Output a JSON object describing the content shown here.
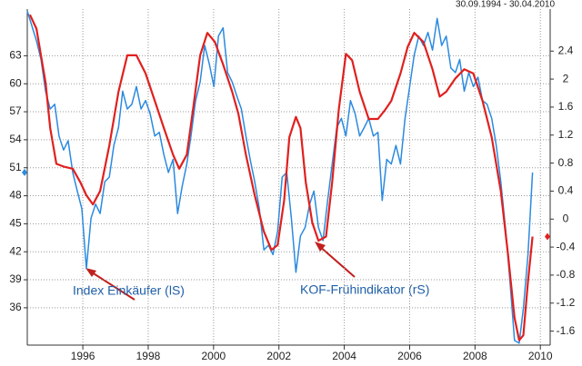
{
  "chart_data": {
    "type": "line",
    "subtitle": "30.09.1994 - 30.04.2010",
    "xlim": [
      1994.3,
      2010.3
    ],
    "xticks": [
      1996,
      1998,
      2000,
      2002,
      2004,
      2006,
      2008,
      2010
    ],
    "ylim": [
      32,
      68
    ],
    "yticks": [
      36,
      39,
      42,
      45,
      48,
      51,
      54,
      57,
      60,
      63
    ],
    "y2lim": [
      -1.8,
      3.0
    ],
    "y2ticks": [
      -1.6,
      -1.2,
      -0.8,
      -0.4,
      0,
      0.4,
      0.8,
      1.2,
      1.6,
      2,
      2.4
    ],
    "grid": true,
    "series": [
      {
        "name": "Index Einkäufer (lS)",
        "color": "#2b8ae0",
        "x": [
          1994.3,
          1994.58,
          1994.72,
          1994.86,
          1995.0,
          1995.14,
          1995.27,
          1995.41,
          1995.55,
          1995.69,
          1995.83,
          1995.97,
          1996.11,
          1996.25,
          1996.39,
          1996.53,
          1996.67,
          1996.81,
          1996.95,
          1997.09,
          1997.22,
          1997.36,
          1997.5,
          1997.64,
          1997.78,
          1997.92,
          1998.06,
          1998.2,
          1998.34,
          1998.48,
          1998.62,
          1998.76,
          1998.9,
          1999.04,
          1999.18,
          1999.31,
          1999.45,
          1999.59,
          1999.73,
          1999.87,
          2000.01,
          2000.15,
          2000.29,
          2000.43,
          2000.57,
          2000.71,
          2000.85,
          2000.99,
          2001.12,
          2001.26,
          2001.4,
          2001.54,
          2001.68,
          2001.82,
          2001.96,
          2002.1,
          2002.24,
          2002.38,
          2002.52,
          2002.66,
          2002.8,
          2002.94,
          2003.07,
          2003.21,
          2003.35,
          2003.49,
          2003.63,
          2003.77,
          2003.91,
          2004.05,
          2004.19,
          2004.33,
          2004.47,
          2004.61,
          2004.75,
          2004.89,
          2005.03,
          2005.16,
          2005.3,
          2005.44,
          2005.58,
          2005.72,
          2005.86,
          2006.0,
          2006.14,
          2006.28,
          2006.42,
          2006.56,
          2006.7,
          2006.84,
          2006.98,
          2007.12,
          2007.26,
          2007.4,
          2007.53,
          2007.67,
          2007.81,
          2007.95,
          2008.09,
          2008.23,
          2008.37,
          2008.51,
          2008.65,
          2008.79,
          2008.93,
          2009.07,
          2009.21,
          2009.35,
          2009.48,
          2009.62,
          2009.76
        ],
        "values": [
          67.8,
          64.6,
          62.6,
          59.2,
          57.3,
          57.8,
          54.4,
          52.9,
          53.9,
          50.5,
          48.5,
          46.6,
          40.2,
          45.6,
          47.1,
          46.1,
          49.5,
          50.0,
          53.4,
          55.3,
          59.2,
          57.3,
          57.8,
          59.7,
          57.3,
          58.2,
          56.8,
          54.4,
          54.8,
          52.4,
          50.5,
          51.9,
          46.1,
          49.0,
          51.4,
          54.4,
          58.2,
          60.2,
          64.1,
          62.1,
          59.7,
          65.1,
          66.0,
          61.2,
          60.2,
          58.7,
          57.3,
          54.4,
          51.9,
          49.5,
          46.6,
          42.2,
          42.7,
          41.7,
          44.2,
          50.0,
          50.5,
          45.6,
          39.8,
          43.7,
          44.6,
          47.1,
          48.5,
          44.6,
          43.2,
          47.5,
          51.4,
          55.3,
          56.3,
          54.4,
          58.2,
          56.8,
          54.4,
          55.3,
          56.3,
          54.4,
          54.8,
          47.5,
          51.9,
          51.4,
          53.4,
          51.4,
          56.3,
          59.7,
          63.1,
          65.1,
          64.1,
          65.5,
          63.6,
          67.0,
          64.1,
          65.1,
          61.7,
          61.2,
          62.6,
          59.2,
          61.2,
          59.7,
          60.7,
          58.2,
          57.8,
          56.3,
          53.4,
          49.5,
          44.6,
          38.8,
          32.5,
          32.2,
          35.9,
          41.7,
          50.5
        ]
      },
      {
        "name": "KOF-Frühindikator (rS)",
        "color": "#e0201e",
        "axis": "y2",
        "x": [
          1994.38,
          1994.58,
          1994.86,
          1995.0,
          1995.19,
          1995.41,
          1995.69,
          1995.92,
          1996.11,
          1996.31,
          1996.53,
          1996.81,
          1997.09,
          1997.36,
          1997.64,
          1997.92,
          1998.2,
          1998.48,
          1998.76,
          1998.95,
          1999.18,
          1999.37,
          1999.59,
          1999.81,
          2000.04,
          2000.29,
          2000.57,
          2000.76,
          2000.99,
          2001.26,
          2001.54,
          2001.77,
          2001.96,
          2002.16,
          2002.32,
          2002.52,
          2002.66,
          2002.82,
          2003.02,
          2003.21,
          2003.44,
          2003.63,
          2003.83,
          2004.05,
          2004.24,
          2004.47,
          2004.75,
          2005.03,
          2005.25,
          2005.44,
          2005.72,
          2005.94,
          2006.14,
          2006.42,
          2006.7,
          2006.92,
          2007.12,
          2007.4,
          2007.67,
          2007.95,
          2008.23,
          2008.51,
          2008.79,
          2009.01,
          2009.21,
          2009.35,
          2009.48,
          2009.62,
          2009.76
        ],
        "values": [
          2.92,
          2.72,
          1.95,
          1.3,
          0.79,
          0.75,
          0.72,
          0.53,
          0.34,
          0.21,
          0.4,
          1.05,
          1.82,
          2.34,
          2.34,
          2.08,
          1.69,
          1.3,
          0.92,
          0.72,
          0.92,
          1.56,
          2.34,
          2.66,
          2.53,
          2.21,
          1.82,
          1.5,
          0.92,
          0.34,
          -0.18,
          -0.44,
          -0.37,
          0.27,
          1.17,
          1.46,
          1.3,
          0.53,
          -0.05,
          -0.31,
          -0.25,
          0.53,
          1.56,
          2.36,
          2.27,
          1.82,
          1.43,
          1.43,
          1.56,
          1.69,
          2.08,
          2.46,
          2.66,
          2.53,
          2.14,
          1.75,
          1.82,
          2.01,
          2.14,
          2.08,
          1.69,
          1.17,
          0.4,
          -0.5,
          -1.41,
          -1.73,
          -1.66,
          -0.89,
          -0.25
        ]
      }
    ]
  }
}
